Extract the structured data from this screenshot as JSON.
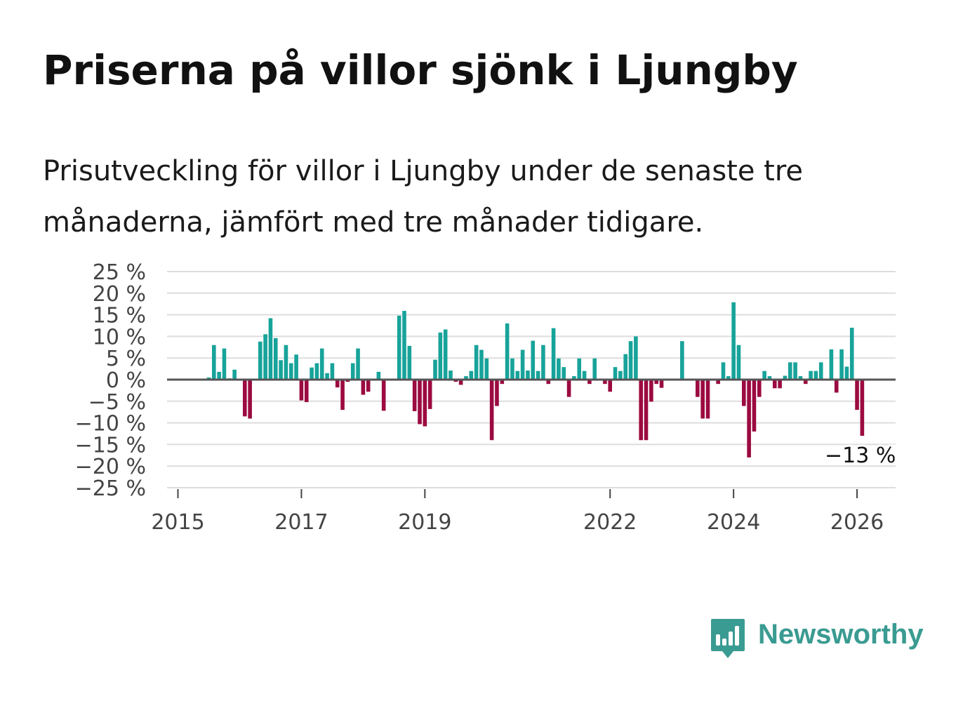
{
  "title": "Priserna på villor sjönk i Ljungby",
  "subtitle": "Prisutveckling för villor i Ljungby under de senaste tre månaderna, jämfört med tre månader tidigare.",
  "brand": {
    "name": "Newsworthy",
    "color": "#3a9b92",
    "icon": "bar-chart-speech-icon"
  },
  "colors": {
    "positive": "#17a39a",
    "negative": "#9b0a40",
    "zero_line": "#555555",
    "grid": "#dddddd"
  },
  "chart_data": {
    "type": "bar",
    "title": "Priserna på villor sjönk i Ljungby",
    "xlabel": "",
    "ylabel": "",
    "ylim": [
      -25,
      25
    ],
    "y_ticks": [
      25,
      20,
      15,
      10,
      5,
      0,
      -5,
      -10,
      -15,
      -20,
      -25
    ],
    "y_tick_labels": [
      "25 %",
      "20 %",
      "15 %",
      "10 %",
      "5 %",
      "0 %",
      "−5 %",
      "−10 %",
      "−15 %",
      "−20 %",
      "−25 %"
    ],
    "x_ticks": [
      {
        "label": "2015",
        "month_index": 0
      },
      {
        "label": "2017",
        "month_index": 24
      },
      {
        "label": "2019",
        "month_index": 48
      },
      {
        "label": "2022",
        "month_index": 84
      },
      {
        "label": "2024",
        "month_index": 108
      },
      {
        "label": "2026",
        "month_index": 132
      }
    ],
    "start": "2015-01",
    "last_value_label": "−13 %",
    "months": [
      "2015-07",
      "2015-08",
      "2015-09",
      "2015-10",
      "2015-11",
      "2015-12",
      "2016-01",
      "2016-02",
      "2016-03",
      "2016-04",
      "2016-05",
      "2016-06",
      "2016-07",
      "2016-08",
      "2016-09",
      "2016-10",
      "2016-11",
      "2016-12",
      "2017-01",
      "2017-02",
      "2017-03",
      "2017-04",
      "2017-05",
      "2017-06",
      "2017-07",
      "2017-08",
      "2017-09",
      "2017-10",
      "2017-11",
      "2017-12",
      "2018-01",
      "2018-02",
      "2018-03",
      "2018-04",
      "2018-05",
      "2018-06",
      "2018-07",
      "2018-08",
      "2018-09",
      "2018-10",
      "2018-11",
      "2018-12",
      "2019-01",
      "2019-02",
      "2019-03",
      "2019-04",
      "2019-05",
      "2019-06",
      "2019-07",
      "2019-08",
      "2019-09",
      "2019-10",
      "2019-11",
      "2019-12",
      "2020-01",
      "2020-02",
      "2020-03",
      "2020-04",
      "2020-05",
      "2020-06",
      "2020-07",
      "2020-08",
      "2020-09",
      "2020-10",
      "2020-11",
      "2020-12",
      "2021-01",
      "2021-02",
      "2021-03",
      "2021-04",
      "2021-05",
      "2021-06",
      "2021-07",
      "2021-08",
      "2021-09",
      "2021-10",
      "2021-11",
      "2021-12",
      "2022-01",
      "2022-02",
      "2022-03",
      "2022-04",
      "2022-05",
      "2022-06",
      "2022-07",
      "2022-08",
      "2022-09",
      "2022-10",
      "2022-11",
      "2022-12",
      "2023-01",
      "2023-02",
      "2023-03",
      "2023-04",
      "2023-05",
      "2023-06",
      "2023-07",
      "2023-08",
      "2023-09",
      "2023-10",
      "2023-11",
      "2023-12",
      "2024-01",
      "2024-02",
      "2024-03",
      "2024-04",
      "2024-05",
      "2024-06",
      "2024-07",
      "2024-08",
      "2024-09",
      "2024-10",
      "2024-11",
      "2024-12",
      "2025-01",
      "2025-02",
      "2025-03",
      "2025-04",
      "2025-05",
      "2025-06",
      "2025-07",
      "2025-08",
      "2025-09",
      "2025-10",
      "2025-11",
      "2025-12",
      "2026-01",
      "2026-02"
    ],
    "values": [
      0.5,
      8,
      1.8,
      7.2,
      0.3,
      2.3,
      0,
      -8.5,
      -9,
      0,
      8.8,
      10.5,
      14.2,
      9.6,
      4.5,
      8,
      3.8,
      5.8,
      -4.8,
      -5.2,
      2.8,
      3.8,
      7.2,
      1.5,
      3.8,
      -1.8,
      -7,
      -0.5,
      3.8,
      7.2,
      -3.5,
      -2.8,
      0,
      1.8,
      -7.2,
      0,
      0,
      14.8,
      15.9,
      7.8,
      -7.3,
      -10.3,
      -10.8,
      -6.8,
      4.6,
      10.9,
      11.6,
      2.1,
      -0.5,
      -1.2,
      0.8,
      2,
      8,
      6.9,
      4.9,
      -14,
      -6.1,
      -1,
      13,
      4.9,
      2,
      6.9,
      2.1,
      9,
      2,
      8,
      -1,
      11.9,
      4.9,
      2.9,
      -4,
      0.8,
      4.9,
      2,
      -1,
      4.9,
      0,
      -1,
      -2.8,
      2.9,
      2,
      5.9,
      8.9,
      10,
      -14,
      -14,
      -5.1,
      -1,
      -1.9,
      0,
      0,
      0,
      8.9,
      0,
      0,
      -4,
      -9,
      -9,
      0,
      -1,
      4,
      0.8,
      17.9,
      8,
      -6.1,
      -18,
      -12,
      -4,
      2,
      0.8,
      -2,
      -2,
      0.9,
      4,
      4,
      0.8,
      -1,
      2,
      2,
      4,
      0,
      7,
      -3,
      7,
      3,
      12,
      -7,
      -13
    ]
  }
}
